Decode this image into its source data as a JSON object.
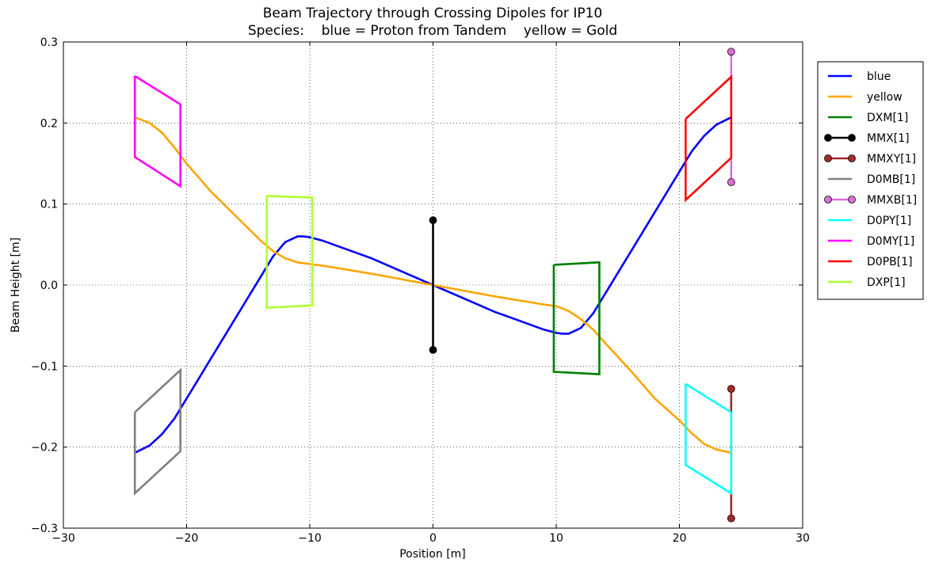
{
  "chart_data": {
    "type": "line",
    "title": "Beam Trajectory through Crossing Dipoles for IP10",
    "subtitle": "Species:    blue = Proton from Tandem    yellow = Gold",
    "xlabel": "Position [m]",
    "ylabel": "Beam Height [m]",
    "xlim": [
      -30,
      30
    ],
    "ylim": [
      -0.3,
      0.3
    ],
    "xticks": [
      -30,
      -20,
      -10,
      0,
      10,
      20,
      30
    ],
    "yticks": [
      -0.3,
      -0.2,
      -0.1,
      0.0,
      0.1,
      0.2,
      0.3
    ],
    "xtick_labels": [
      "−30",
      "−20",
      "−10",
      "0",
      "10",
      "20",
      "30"
    ],
    "ytick_labels": [
      "−0.3",
      "−0.2",
      "−0.1",
      "0.0",
      "0.1",
      "0.2",
      "0.3"
    ],
    "grid": true,
    "legend_position": "outside right",
    "series": [
      {
        "name": "blue",
        "color": "#0000ff",
        "marker": false,
        "x": [
          -24.2,
          -23.0,
          -22.0,
          -21.0,
          -20.0,
          -18.0,
          -16.0,
          -14.0,
          -13.0,
          -12.0,
          -11.0,
          -10.5,
          -10.0,
          -9.0,
          -5.0,
          0.0,
          5.0,
          9.0,
          10.0,
          10.5,
          11.0,
          12.0,
          13.0,
          14.0,
          16.0,
          18.0,
          20.0,
          21.0,
          22.0,
          23.0,
          24.2
        ],
        "y": [
          -0.207,
          -0.198,
          -0.184,
          -0.165,
          -0.14,
          -0.09,
          -0.04,
          0.01,
          0.035,
          0.053,
          0.06,
          0.06,
          0.059,
          0.055,
          0.033,
          0.0,
          -0.033,
          -0.055,
          -0.059,
          -0.06,
          -0.06,
          -0.053,
          -0.035,
          -0.01,
          0.04,
          0.09,
          0.14,
          0.165,
          0.184,
          0.198,
          0.207
        ]
      },
      {
        "name": "yellow",
        "color": "#ffa500",
        "marker": false,
        "x": [
          -24.2,
          -23.0,
          -22.0,
          -21.0,
          -20.0,
          -18.0,
          -16.0,
          -14.0,
          -13.0,
          -12.0,
          -11.0,
          -10.0,
          -9.0,
          -5.0,
          0.0,
          5.0,
          9.0,
          10.0,
          11.0,
          12.0,
          13.0,
          14.0,
          16.0,
          18.0,
          20.0,
          21.0,
          22.0,
          23.0,
          24.2
        ],
        "y": [
          0.207,
          0.2,
          0.188,
          0.17,
          0.15,
          0.115,
          0.085,
          0.055,
          0.042,
          0.033,
          0.028,
          0.026,
          0.024,
          0.014,
          0.0,
          -0.014,
          -0.024,
          -0.026,
          -0.032,
          -0.042,
          -0.055,
          -0.072,
          -0.105,
          -0.14,
          -0.167,
          -0.183,
          -0.196,
          -0.203,
          -0.207
        ]
      },
      {
        "name": "DXM[1]",
        "color": "#008000",
        "marker": false,
        "x": [
          9.8,
          13.5,
          13.5,
          9.8,
          9.8
        ],
        "y": [
          0.025,
          0.028,
          -0.11,
          -0.107,
          0.025
        ]
      },
      {
        "name": "MMX[1]",
        "color": "#000000",
        "marker": true,
        "x": [
          0.0,
          0.0
        ],
        "y": [
          0.08,
          -0.08
        ]
      },
      {
        "name": "MMXY[1]",
        "color": "#a52a2a",
        "marker": true,
        "x": [
          24.2,
          24.2
        ],
        "y": [
          -0.128,
          -0.288
        ]
      },
      {
        "name": "D0MB[1]",
        "color": "#808080",
        "marker": false,
        "x": [
          -24.2,
          -20.5,
          -20.5,
          -24.2,
          -24.2
        ],
        "y": [
          -0.157,
          -0.105,
          -0.205,
          -0.257,
          -0.157
        ]
      },
      {
        "name": "MMXB[1]",
        "color": "#da70d6",
        "marker": true,
        "x": [
          24.2,
          24.2
        ],
        "y": [
          0.288,
          0.127
        ]
      },
      {
        "name": "D0PY[1]",
        "color": "#00ffff",
        "marker": false,
        "x": [
          20.5,
          24.2,
          24.2,
          20.5,
          20.5
        ],
        "y": [
          -0.122,
          -0.157,
          -0.257,
          -0.222,
          -0.122
        ]
      },
      {
        "name": "D0MY[1]",
        "color": "#ff00ff",
        "marker": false,
        "x": [
          -24.2,
          -20.5,
          -20.5,
          -24.2,
          -24.2
        ],
        "y": [
          0.258,
          0.223,
          0.122,
          0.158,
          0.258
        ]
      },
      {
        "name": "D0PB[1]",
        "color": "#ff0000",
        "marker": false,
        "x": [
          20.5,
          24.2,
          24.2,
          20.5,
          20.5
        ],
        "y": [
          0.205,
          0.257,
          0.157,
          0.105,
          0.205
        ]
      },
      {
        "name": "DXP[1]",
        "color": "#adff2f",
        "marker": false,
        "x": [
          -13.5,
          -9.8,
          -9.8,
          -13.5,
          -13.5
        ],
        "y": [
          0.11,
          0.108,
          -0.025,
          -0.028,
          0.11
        ]
      }
    ]
  }
}
